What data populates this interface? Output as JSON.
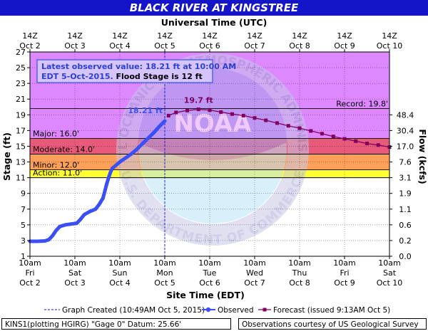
{
  "colors": {
    "title_bar": "#1414c8",
    "title_text": "#ffffff",
    "record_band": "#dd88ff",
    "major_band": "#e85a7a",
    "moderate_band": "#f06060",
    "minor_band": "#ffa05a",
    "action_band": "#ffff33",
    "observed": "#3a4ff5",
    "forecast": "#800060",
    "info_box_border": "#3a4ff5"
  },
  "watermark": {
    "logo": "noaa-emblem",
    "text": "NOAA",
    "ring_top": "NATIONAL OCEANIC AND ATMOSPHERIC ADMINISTRATION",
    "ring_bottom": "U.S. DEPARTMENT OF COMMERCE"
  },
  "footer": {
    "left": "KINS1(plotting HGIRG) \"Gage 0\" Datum: 25.66'",
    "right": "Observations courtesy of US Geological Survey"
  },
  "chart_data": {
    "type": "line",
    "title": "BLACK RIVER AT KINGSTREE",
    "top_axis_label": "Universal Time (UTC)",
    "xlabel": "Site Time (EDT)",
    "ylabel": "Stage (ft)",
    "y2label": "Flow (kcfs)",
    "ylim": [
      1,
      27
    ],
    "yticks": [
      "1",
      "3",
      "5",
      "7",
      "9",
      "11",
      "13",
      "15",
      "17",
      "19",
      "21",
      "23",
      "25",
      "27"
    ],
    "y2ticks": [
      {
        "stage": 1,
        "label": "0.0"
      },
      {
        "stage": 3,
        "label": "0.2"
      },
      {
        "stage": 5,
        "label": "0.6"
      },
      {
        "stage": 7,
        "label": "1.1"
      },
      {
        "stage": 9,
        "label": "1.9"
      },
      {
        "stage": 11,
        "label": "3.1"
      },
      {
        "stage": 13,
        "label": "7.6"
      },
      {
        "stage": 15,
        "label": "17.0"
      },
      {
        "stage": 17,
        "label": "30.4"
      },
      {
        "stage": 19,
        "label": "48.4"
      }
    ],
    "x_domain_hours": [
      0,
      192
    ],
    "top_ticks": [
      {
        "hour": 0,
        "time": "14Z",
        "date": "Oct 2"
      },
      {
        "hour": 24,
        "time": "14Z",
        "date": "Oct 3"
      },
      {
        "hour": 48,
        "time": "14Z",
        "date": "Oct 4"
      },
      {
        "hour": 72,
        "time": "14Z",
        "date": "Oct 5"
      },
      {
        "hour": 96,
        "time": "14Z",
        "date": "Oct 6"
      },
      {
        "hour": 120,
        "time": "14Z",
        "date": "Oct 7"
      },
      {
        "hour": 144,
        "time": "14Z",
        "date": "Oct 8"
      },
      {
        "hour": 168,
        "time": "14Z",
        "date": "Oct 9"
      },
      {
        "hour": 192,
        "time": "14Z",
        "date": "Oct 10"
      }
    ],
    "bottom_ticks": [
      {
        "hour": 0,
        "time": "10am",
        "day": "Fri",
        "date": "Oct 2"
      },
      {
        "hour": 24,
        "time": "10am",
        "day": "Sat",
        "date": "Oct 3"
      },
      {
        "hour": 48,
        "time": "10am",
        "day": "Sun",
        "date": "Oct 4"
      },
      {
        "hour": 72,
        "time": "10am",
        "day": "Mon",
        "date": "Oct 5"
      },
      {
        "hour": 96,
        "time": "10am",
        "day": "Tue",
        "date": "Oct 6"
      },
      {
        "hour": 120,
        "time": "10am",
        "day": "Wed",
        "date": "Oct 7"
      },
      {
        "hour": 144,
        "time": "10am",
        "day": "Thu",
        "date": "Oct 8"
      },
      {
        "hour": 168,
        "time": "10am",
        "day": "Fri",
        "date": "Oct 9"
      },
      {
        "hour": 192,
        "time": "10am",
        "day": "Sat",
        "date": "Oct 10"
      }
    ],
    "flood_categories": [
      {
        "name": "Record",
        "label": "Record: 19.8'",
        "stage": 19.8
      },
      {
        "name": "Major",
        "label": "Major: 16.0'",
        "stage": 16.0
      },
      {
        "name": "Moderate",
        "label": "Moderate: 14.0'",
        "stage": 14.0
      },
      {
        "name": "Minor",
        "label": "Minor: 12.0'",
        "stage": 12.0
      },
      {
        "name": "Action",
        "label": "Action: 11.0'",
        "stage": 11.0
      }
    ],
    "info_line1": "Latest observed value: 18.21 ft at 10:00 AM",
    "info_line2a": "EDT 5-Oct-2015.",
    "info_line2b": " Flood Stage is 12 ft",
    "graph_created_hour": 72,
    "annotations": {
      "latest_observed": "18.21 ft",
      "forecast_crest": "19.7 ft"
    },
    "legend": {
      "graph_created": "Graph Created (10:49AM Oct 5, 2015)",
      "observed": "Observed",
      "forecast": "Forecast (issued 9:13AM Oct 5)"
    },
    "observed": [
      [
        0,
        2.9
      ],
      [
        4,
        2.9
      ],
      [
        8,
        2.95
      ],
      [
        10,
        3.1
      ],
      [
        12,
        3.6
      ],
      [
        14,
        4.3
      ],
      [
        16,
        4.8
      ],
      [
        19,
        5.0
      ],
      [
        22,
        5.1
      ],
      [
        25,
        5.2
      ],
      [
        27,
        5.7
      ],
      [
        29,
        6.3
      ],
      [
        32,
        6.7
      ],
      [
        35,
        7.0
      ],
      [
        37,
        7.6
      ],
      [
        39,
        8.4
      ],
      [
        40,
        9.3
      ],
      [
        41,
        10.2
      ],
      [
        42,
        11.0
      ],
      [
        43,
        11.7
      ],
      [
        44,
        12.2
      ],
      [
        46,
        12.6
      ],
      [
        48,
        13.0
      ],
      [
        51,
        13.5
      ],
      [
        54,
        14.0
      ],
      [
        57,
        14.6
      ],
      [
        60,
        15.3
      ],
      [
        63,
        16.0
      ],
      [
        66,
        16.7
      ],
      [
        69,
        17.5
      ],
      [
        72,
        18.21
      ]
    ],
    "forecast": [
      [
        74,
        18.9
      ],
      [
        78,
        19.3
      ],
      [
        84,
        19.55
      ],
      [
        90,
        19.7
      ],
      [
        96,
        19.6
      ],
      [
        102,
        19.35
      ],
      [
        108,
        19.1
      ],
      [
        114,
        18.9
      ],
      [
        120,
        18.6
      ],
      [
        126,
        18.3
      ],
      [
        132,
        17.95
      ],
      [
        138,
        17.6
      ],
      [
        144,
        17.3
      ],
      [
        150,
        16.95
      ],
      [
        156,
        16.6
      ],
      [
        162,
        16.25
      ],
      [
        168,
        15.95
      ],
      [
        174,
        15.65
      ],
      [
        180,
        15.35
      ],
      [
        186,
        15.15
      ],
      [
        192,
        14.9
      ]
    ]
  }
}
